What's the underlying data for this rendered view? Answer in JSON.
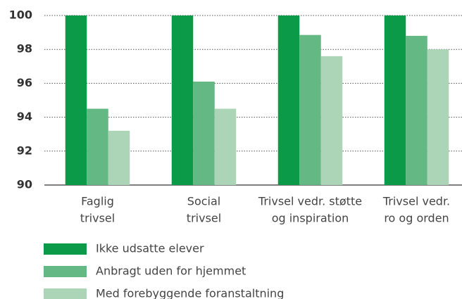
{
  "chart_data": {
    "type": "bar",
    "categories": [
      [
        "Faglig",
        "trivsel"
      ],
      [
        "Social",
        "trivsel"
      ],
      [
        "Trivsel vedr. støtte",
        "og inspiration"
      ],
      [
        "Trivsel vedr.",
        "ro og orden"
      ]
    ],
    "series": [
      {
        "name": "Ikke udsatte elever",
        "color": "#0a9a48",
        "values": [
          100,
          100,
          100,
          100
        ]
      },
      {
        "name": "Anbragt uden for hjemmet",
        "color": "#63b884",
        "values": [
          94.5,
          96.1,
          98.85,
          98.8
        ]
      },
      {
        "name": "Med forebyggende foranstaltning",
        "color": "#acd5b7",
        "values": [
          93.2,
          94.5,
          97.6,
          98.0
        ]
      }
    ],
    "ylim": [
      90,
      100
    ],
    "yticks": [
      90,
      92,
      94,
      96,
      98,
      100
    ],
    "grid": true,
    "legend": "bottom"
  }
}
